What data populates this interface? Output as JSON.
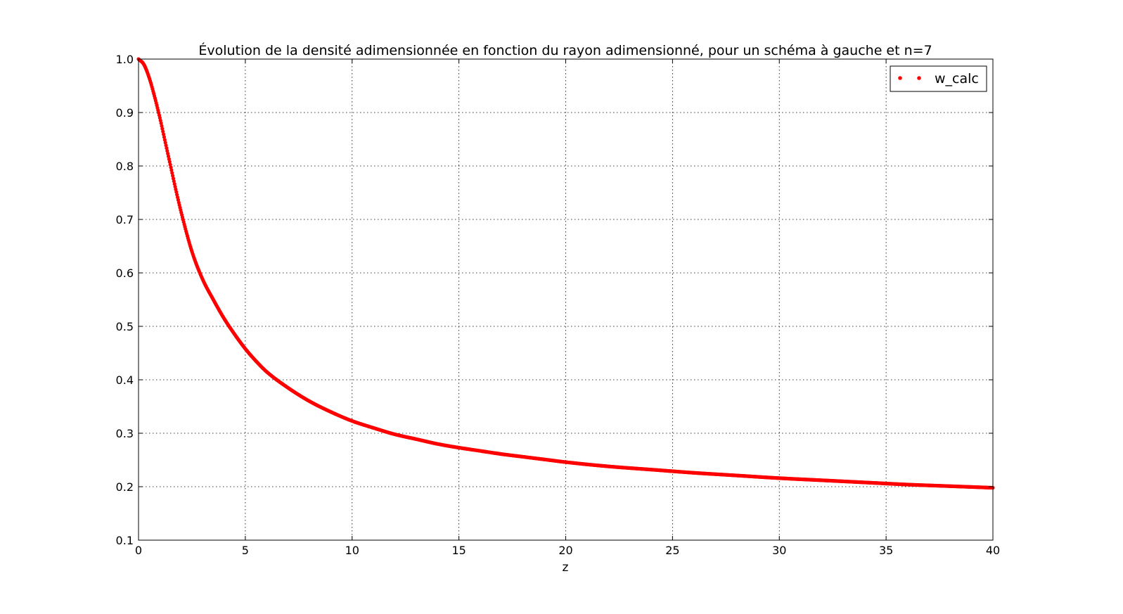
{
  "chart_data": {
    "type": "scatter",
    "title": "Évolution de la densité adimensionnée en fonction du rayon adimensionné, pour un schéma à gauche et n=7",
    "xlabel": "z",
    "ylabel": "",
    "xlim": [
      0,
      40
    ],
    "ylim": [
      0.1,
      1.0
    ],
    "xticks": [
      "0",
      "5",
      "10",
      "15",
      "20",
      "25",
      "30",
      "35",
      "40"
    ],
    "yticks": [
      "0.1",
      "0.2",
      "0.3",
      "0.4",
      "0.5",
      "0.6",
      "0.7",
      "0.8",
      "0.9",
      "1.0"
    ],
    "grid": true,
    "legend_position": "top-right",
    "series": [
      {
        "name": "w_calc",
        "color": "#ff0000",
        "marker": "dot",
        "points": [
          [
            0,
            1.0
          ],
          [
            0.25,
            0.99
          ],
          [
            0.5,
            0.965
          ],
          [
            0.75,
            0.93
          ],
          [
            1.0,
            0.89
          ],
          [
            1.25,
            0.845
          ],
          [
            1.5,
            0.8
          ],
          [
            1.75,
            0.755
          ],
          [
            2.0,
            0.713
          ],
          [
            2.5,
            0.64
          ],
          [
            3.0,
            0.588
          ],
          [
            3.5,
            0.55
          ],
          [
            4.0,
            0.515
          ],
          [
            4.5,
            0.485
          ],
          [
            5.0,
            0.458
          ],
          [
            5.5,
            0.435
          ],
          [
            6.0,
            0.415
          ],
          [
            7.0,
            0.385
          ],
          [
            8.0,
            0.36
          ],
          [
            9.0,
            0.34
          ],
          [
            10.0,
            0.323
          ],
          [
            11.0,
            0.31
          ],
          [
            12.0,
            0.298
          ],
          [
            13.0,
            0.289
          ],
          [
            14.0,
            0.28
          ],
          [
            15.0,
            0.273
          ],
          [
            16.0,
            0.267
          ],
          [
            17.0,
            0.261
          ],
          [
            18.0,
            0.256
          ],
          [
            19.0,
            0.251
          ],
          [
            20.0,
            0.246
          ],
          [
            22.0,
            0.238
          ],
          [
            24.0,
            0.232
          ],
          [
            26.0,
            0.226
          ],
          [
            28.0,
            0.221
          ],
          [
            30.0,
            0.216
          ],
          [
            32.0,
            0.212
          ],
          [
            34.0,
            0.208
          ],
          [
            36.0,
            0.204
          ],
          [
            38.0,
            0.201
          ],
          [
            40.0,
            0.198
          ]
        ]
      }
    ]
  }
}
